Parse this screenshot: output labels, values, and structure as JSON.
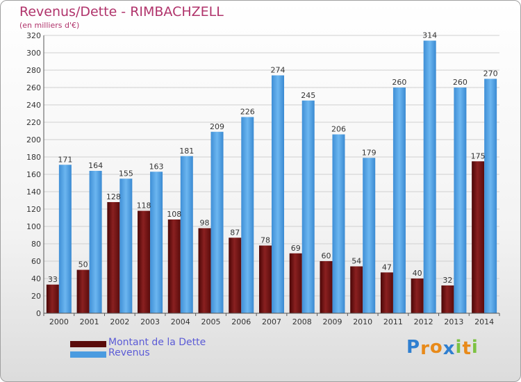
{
  "header": {
    "title": "Revenus/Dette - RIMBACHZELL",
    "subtitle": "(en milliers d'€)"
  },
  "chart_data": {
    "type": "bar",
    "categories": [
      "2000",
      "2001",
      "2002",
      "2003",
      "2004",
      "2005",
      "2006",
      "2007",
      "2008",
      "2009",
      "2010",
      "2011",
      "2012",
      "2013",
      "2014"
    ],
    "series": [
      {
        "name": "Montant de la Dette",
        "color": "#7a1010",
        "values": [
          33,
          50,
          128,
          118,
          108,
          98,
          87,
          78,
          69,
          60,
          54,
          47,
          40,
          32,
          175
        ]
      },
      {
        "name": "Revenus",
        "color": "#4a9be0",
        "values": [
          171,
          164,
          155,
          163,
          181,
          209,
          226,
          274,
          245,
          206,
          179,
          260,
          314,
          260,
          270
        ]
      }
    ],
    "ylim": [
      0,
      320
    ],
    "ytick_step": 20,
    "grid": true,
    "legend_position": "bottom-left"
  },
  "legend": {
    "items": [
      {
        "label": "Montant de la Dette",
        "color": "#5a0c0c"
      },
      {
        "label": "Revenus",
        "color": "#4a9be0"
      }
    ]
  },
  "logo": {
    "letters": [
      "P",
      "r",
      "o",
      "x",
      "i",
      "t",
      "i"
    ],
    "colors": [
      "#2f7fd0",
      "#e88a1a",
      "#e88a1a",
      "#2f7fd0",
      "#7cc242",
      "#e88a1a",
      "#7cc242"
    ]
  }
}
